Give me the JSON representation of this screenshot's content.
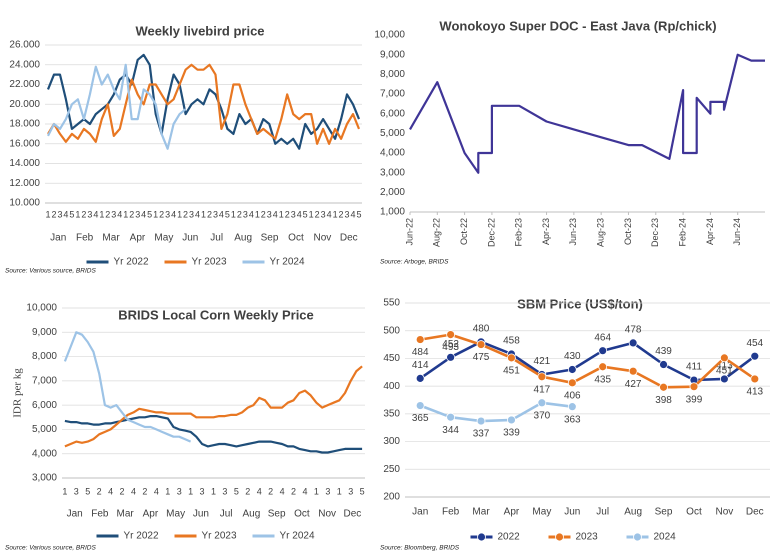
{
  "chart_data": [
    {
      "type": "line",
      "title": "Weekly livebird price",
      "source": "Source: Various source, BRIDS",
      "grid": true,
      "ylim": [
        10000,
        26000
      ],
      "yticks": [
        {
          "value": 10000,
          "label": "10.000"
        },
        {
          "value": 12000,
          "label": "12.000"
        },
        {
          "value": 14000,
          "label": "14.000"
        },
        {
          "value": 16000,
          "label": "16.000"
        },
        {
          "value": 18000,
          "label": "18.000"
        },
        {
          "value": 20000,
          "label": "20.000"
        },
        {
          "value": 22000,
          "label": "22.000"
        },
        {
          "value": 24000,
          "label": "24.000"
        },
        {
          "value": 26000,
          "label": "26.000"
        }
      ],
      "categories": [
        "1",
        "2",
        "3",
        "4",
        "5",
        "1",
        "2",
        "3",
        "4",
        "1",
        "2",
        "3",
        "4",
        "1",
        "2",
        "3",
        "4",
        "5",
        "1",
        "2",
        "3",
        "4",
        "1",
        "2",
        "3",
        "4",
        "1",
        "2",
        "3",
        "4",
        "5",
        "1",
        "2",
        "3",
        "4",
        "1",
        "2",
        "3",
        "4",
        "1",
        "2",
        "3",
        "4",
        "5",
        "1",
        "2",
        "3",
        "4",
        "1",
        "2",
        "3",
        "4",
        "5"
      ],
      "months": [
        "Jan",
        "Feb",
        "Mar",
        "Apr",
        "May",
        "Jun",
        "Jul",
        "Aug",
        "Sep",
        "Oct",
        "Nov",
        "Dec"
      ],
      "series": [
        {
          "name": "Yr 2022",
          "color": "#1f4e79",
          "values": [
            21500,
            23000,
            23000,
            20500,
            17500,
            18000,
            18500,
            18000,
            19000,
            19500,
            20000,
            21000,
            22500,
            23000,
            22000,
            24500,
            25000,
            24000,
            19000,
            17000,
            20500,
            23000,
            22000,
            19000,
            20000,
            20500,
            20000,
            21500,
            21000,
            19500,
            17500,
            17000,
            19000,
            18000,
            18500,
            17000,
            18500,
            18000,
            16000,
            16500,
            16000,
            16500,
            15500,
            18000,
            17000,
            17500,
            18500,
            17500,
            16500,
            18500,
            21000,
            20000,
            18500
          ]
        },
        {
          "name": "Yr 2023",
          "color": "#e87722",
          "values": [
            17000,
            18000,
            17000,
            16200,
            17000,
            16500,
            17500,
            17000,
            16200,
            18500,
            20000,
            16800,
            17500,
            20000,
            22500,
            21000,
            20000,
            22000,
            22000,
            21000,
            20000,
            20500,
            22000,
            23500,
            24000,
            23500,
            23500,
            24000,
            23000,
            17500,
            19000,
            22000,
            22000,
            20000,
            18500,
            17000,
            17500,
            17000,
            16500,
            18500,
            21000,
            19000,
            18500,
            19000,
            19000,
            16000,
            17500,
            16000,
            17500,
            16500,
            18000,
            19000,
            17500
          ]
        },
        {
          "name": "Yr 2024",
          "color": "#9dc3e6",
          "values": [
            16800,
            18000,
            17500,
            18500,
            20000,
            20500,
            18500,
            21000,
            23800,
            22000,
            23000,
            21500,
            20500,
            24000,
            18500,
            18500,
            21500,
            21000,
            20000,
            17000,
            15500,
            18000,
            19000,
            19500,
            null,
            null,
            null,
            null,
            null,
            null,
            null,
            null,
            null,
            null,
            null,
            null,
            null,
            null,
            null,
            null,
            null,
            null,
            null,
            null,
            null,
            null,
            null,
            null,
            null,
            null,
            null,
            null,
            null
          ]
        }
      ]
    },
    {
      "type": "line",
      "title": "Wonokoyo Super DOC - East Java (Rp/chick)",
      "source": "Source: Arboge, BRIDS",
      "grid": false,
      "color": "#3f3597",
      "ylim": [
        1000,
        10000
      ],
      "yticks": [
        {
          "value": 1000,
          "label": "1,000"
        },
        {
          "value": 2000,
          "label": "2,000"
        },
        {
          "value": 3000,
          "label": "3,000"
        },
        {
          "value": 4000,
          "label": "4,000"
        },
        {
          "value": 5000,
          "label": "5,000"
        },
        {
          "value": 6000,
          "label": "6,000"
        },
        {
          "value": 7000,
          "label": "7,000"
        },
        {
          "value": 8000,
          "label": "8,000"
        },
        {
          "value": 9000,
          "label": "9,000"
        },
        {
          "value": 10000,
          "label": "10,000"
        }
      ],
      "xlim": [
        "2022-06",
        "2024-08"
      ],
      "xticks": [
        {
          "value": "2022-06",
          "label": "Jun-22"
        },
        {
          "value": "2022-08",
          "label": "Aug-22"
        },
        {
          "value": "2022-10",
          "label": "Oct-22"
        },
        {
          "value": "2022-12",
          "label": "Dec-22"
        },
        {
          "value": "2023-02",
          "label": "Feb-23"
        },
        {
          "value": "2023-04",
          "label": "Apr-23"
        },
        {
          "value": "2023-06",
          "label": "Jun-23"
        },
        {
          "value": "2023-08",
          "label": "Aug-23"
        },
        {
          "value": "2023-10",
          "label": "Oct-23"
        },
        {
          "value": "2023-12",
          "label": "Dec-23"
        },
        {
          "value": "2024-02",
          "label": "Feb-24"
        },
        {
          "value": "2024-04",
          "label": "Apr-24"
        },
        {
          "value": "2024-06",
          "label": "Jun-24"
        }
      ],
      "x": [
        "2022-06",
        "2022-08",
        "2022-10",
        "2022-11",
        "2022-11",
        "2022-11",
        "2022-12",
        "2022-12",
        "2023-02",
        "2023-04",
        "2023-06",
        "2023-08",
        "2023-10",
        "2023-11",
        "2024-01",
        "2024-02",
        "2024-02",
        "2024-03",
        "2024-03",
        "2024-04",
        "2024-04",
        "2024-05",
        "2024-05",
        "2024-06",
        "2024-07",
        "2024-08"
      ],
      "values": [
        5200,
        7600,
        4000,
        3000,
        3200,
        4000,
        4000,
        6400,
        6400,
        5600,
        5200,
        4800,
        4400,
        4400,
        3700,
        7200,
        4000,
        4000,
        6800,
        6000,
        6600,
        6600,
        6200,
        9000,
        8700,
        8700
      ]
    },
    {
      "type": "line",
      "title": "BRIDS Local Corn Weekly Price",
      "source": "Source: Various source, BRIDS",
      "ylabel": "IDR per kg",
      "grid": true,
      "ylim": [
        3000,
        10000
      ],
      "yticks": [
        {
          "value": 3000,
          "label": "3,000"
        },
        {
          "value": 4000,
          "label": "4,000"
        },
        {
          "value": 5000,
          "label": "5,000"
        },
        {
          "value": 6000,
          "label": "6,000"
        },
        {
          "value": 7000,
          "label": "7,000"
        },
        {
          "value": 8000,
          "label": "8,000"
        },
        {
          "value": 9000,
          "label": "9,000"
        },
        {
          "value": 10000,
          "label": "10,000"
        }
      ],
      "categories": [
        "1",
        null,
        "3",
        null,
        "5",
        null,
        "2",
        null,
        "4",
        null,
        "2",
        null,
        "4",
        null,
        "2",
        null,
        "4",
        null,
        "1",
        null,
        "3",
        null,
        "1",
        null,
        "3",
        null,
        "1",
        null,
        "3",
        null,
        "5",
        null,
        "2",
        null,
        "4",
        null,
        "2",
        null,
        "4",
        null,
        "2",
        null,
        "4",
        null,
        "1",
        null,
        "3",
        null,
        "1",
        null,
        "3",
        null,
        "5"
      ],
      "months": [
        "Jan",
        "Feb",
        "Mar",
        "Apr",
        "May",
        "Jun",
        "Jul",
        "Aug",
        "Sep",
        "Oct",
        "Nov",
        "Dec"
      ],
      "series": [
        {
          "name": "Yr 2022",
          "color": "#1f4e79",
          "values": [
            5350,
            5300,
            5300,
            5250,
            5250,
            5200,
            5200,
            5250,
            5250,
            5300,
            5350,
            5400,
            5450,
            5500,
            5500,
            5550,
            5550,
            5500,
            5450,
            5100,
            5000,
            4950,
            4900,
            4700,
            4400,
            4300,
            4350,
            4400,
            4400,
            4350,
            4300,
            4350,
            4400,
            4450,
            4500,
            4500,
            4500,
            4450,
            4400,
            4300,
            4300,
            4200,
            4150,
            4100,
            4100,
            4050,
            4050,
            4100,
            4150,
            4200,
            4200,
            4200,
            4200
          ]
        },
        {
          "name": "Yr 2023",
          "color": "#e87722",
          "values": [
            4300,
            4400,
            4500,
            4450,
            4500,
            4600,
            4800,
            4900,
            5000,
            5200,
            5400,
            5600,
            5700,
            5850,
            5800,
            5750,
            5700,
            5700,
            5650,
            5650,
            5650,
            5650,
            5650,
            5500,
            5500,
            5500,
            5500,
            5550,
            5550,
            5600,
            5600,
            5700,
            5900,
            6000,
            6300,
            6200,
            5900,
            5900,
            5900,
            6100,
            6200,
            6500,
            6600,
            6400,
            6100,
            5900,
            6000,
            6100,
            6200,
            6500,
            7000,
            7400,
            7600
          ]
        },
        {
          "name": "Yr 2024",
          "color": "#9dc3e6",
          "values": [
            7800,
            8400,
            9000,
            8900,
            8600,
            8200,
            7300,
            6000,
            5900,
            6000,
            5700,
            5400,
            5300,
            5200,
            5100,
            5100,
            5000,
            4900,
            4800,
            4700,
            4700,
            4600,
            4500,
            null,
            null,
            null,
            null,
            null,
            null,
            null,
            null,
            null,
            null,
            null,
            null,
            null,
            null,
            null,
            null,
            null,
            null,
            null,
            null,
            null,
            null,
            null,
            null,
            null,
            null,
            null,
            null,
            null,
            null
          ]
        }
      ]
    },
    {
      "type": "line",
      "title": "SBM Price (US$/ton)",
      "source": "Source: Bloomberg, BRIDS",
      "grid": true,
      "markers": true,
      "ylim": [
        200,
        550
      ],
      "yticks": [
        200,
        250,
        300,
        350,
        400,
        450,
        500,
        550
      ],
      "categories": [
        "Jan",
        "Feb",
        "Mar",
        "Apr",
        "May",
        "Jun",
        "Jul",
        "Aug",
        "Sep",
        "Oct",
        "Nov",
        "Dec"
      ],
      "series": [
        {
          "name": "2022",
          "color": "#203a8f",
          "values": [
            414,
            452,
            480,
            458,
            421,
            430,
            464,
            478,
            439,
            411,
            413,
            454
          ]
        },
        {
          "name": "2023",
          "color": "#e87722",
          "values": [
            484,
            493,
            475,
            451,
            417,
            406,
            435,
            427,
            398,
            399,
            451,
            413
          ]
        },
        {
          "name": "2024",
          "color": "#9dc3e6",
          "values": [
            365,
            344,
            337,
            339,
            370,
            363,
            null,
            null,
            null,
            null,
            null,
            null
          ]
        }
      ]
    }
  ]
}
